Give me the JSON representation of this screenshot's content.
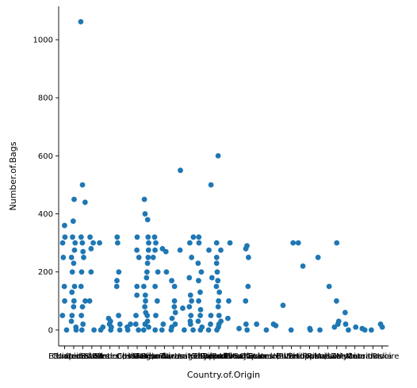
{
  "chart_data": {
    "type": "scatter",
    "style": "categorical-strip",
    "title": "",
    "xlabel": "Country.of.Origin",
    "ylabel": "Number.of.Bags",
    "ylim": [
      -55,
      1115
    ],
    "yticks": [
      0,
      200,
      400,
      600,
      800,
      1000
    ],
    "grid": false,
    "legend": "none",
    "point_color": "#1f77b4",
    "category_count": 36,
    "categories": [
      "Ethiopia",
      "Guatemala",
      "United States",
      "Brazil",
      "Peru",
      "United States (Hawaii)",
      "Indonesia",
      "China",
      "Costa Rica",
      "Mexico",
      "Uganda",
      "Honduras",
      "Taiwan",
      "Nicaragua",
      "Tanzania, United Republic Of",
      "Kenya",
      "Thailand",
      "Colombia",
      "Panama",
      "Papua New Guinea",
      "El Salvador",
      "Japan",
      "Ecuador",
      "United States (Puerto Rico)",
      "Haiti",
      "Burundi",
      "Vietnam",
      "Philippines",
      "Rwanda",
      "Malawi",
      "Laos",
      "Zambia",
      "Myanmar",
      "Mauritius",
      "Cote d?Ivoire",
      "India"
    ],
    "series": [
      {
        "points": [
          [
            0,
            360
          ],
          [
            0,
            320
          ],
          [
            0,
            300
          ],
          [
            0,
            250
          ],
          [
            0,
            150
          ],
          [
            0,
            100
          ],
          [
            0,
            50
          ],
          [
            0,
            0
          ],
          [
            1,
            450
          ],
          [
            1,
            375
          ],
          [
            1,
            320
          ],
          [
            1,
            300
          ],
          [
            1,
            275
          ],
          [
            1,
            250
          ],
          [
            1,
            230
          ],
          [
            1,
            200
          ],
          [
            1,
            150
          ],
          [
            1,
            130
          ],
          [
            1,
            100
          ],
          [
            1,
            80
          ],
          [
            1,
            50
          ],
          [
            1,
            30
          ],
          [
            1,
            10
          ],
          [
            1,
            0
          ],
          [
            2,
            1062
          ],
          [
            2,
            500
          ],
          [
            2,
            440
          ],
          [
            2,
            320
          ],
          [
            2,
            300
          ],
          [
            2,
            270
          ],
          [
            2,
            250
          ],
          [
            2,
            200
          ],
          [
            2,
            150
          ],
          [
            2,
            100
          ],
          [
            2,
            80
          ],
          [
            2,
            50
          ],
          [
            2,
            20
          ],
          [
            2,
            0
          ],
          [
            3,
            320
          ],
          [
            3,
            300
          ],
          [
            3,
            280
          ],
          [
            3,
            200
          ],
          [
            3,
            100
          ],
          [
            3,
            0
          ],
          [
            4,
            300
          ],
          [
            4,
            10
          ],
          [
            4,
            0
          ],
          [
            5,
            40
          ],
          [
            5,
            30
          ],
          [
            5,
            20
          ],
          [
            5,
            10
          ],
          [
            5,
            0
          ],
          [
            6,
            320
          ],
          [
            6,
            300
          ],
          [
            6,
            200
          ],
          [
            6,
            170
          ],
          [
            6,
            150
          ],
          [
            6,
            50
          ],
          [
            6,
            20
          ],
          [
            6,
            0
          ],
          [
            7,
            20
          ],
          [
            7,
            10
          ],
          [
            7,
            0
          ],
          [
            8,
            320
          ],
          [
            8,
            275
          ],
          [
            8,
            250
          ],
          [
            8,
            150
          ],
          [
            8,
            120
          ],
          [
            8,
            50
          ],
          [
            8,
            20
          ],
          [
            8,
            0
          ],
          [
            9,
            450
          ],
          [
            9,
            400
          ],
          [
            9,
            380
          ],
          [
            9,
            320
          ],
          [
            9,
            300
          ],
          [
            9,
            275
          ],
          [
            9,
            250
          ],
          [
            9,
            230
          ],
          [
            9,
            200
          ],
          [
            9,
            180
          ],
          [
            9,
            150
          ],
          [
            9,
            120
          ],
          [
            9,
            100
          ],
          [
            9,
            80
          ],
          [
            9,
            60
          ],
          [
            9,
            50
          ],
          [
            9,
            30
          ],
          [
            9,
            20
          ],
          [
            9,
            10
          ],
          [
            9,
            0
          ],
          [
            10,
            320
          ],
          [
            10,
            300
          ],
          [
            10,
            275
          ],
          [
            10,
            250
          ],
          [
            10,
            200
          ],
          [
            10,
            150
          ],
          [
            10,
            100
          ],
          [
            10,
            50
          ],
          [
            10,
            0
          ],
          [
            11,
            280
          ],
          [
            11,
            270
          ],
          [
            11,
            200
          ],
          [
            11,
            20
          ],
          [
            11,
            0
          ],
          [
            12,
            170
          ],
          [
            12,
            150
          ],
          [
            12,
            100
          ],
          [
            12,
            80
          ],
          [
            12,
            60
          ],
          [
            12,
            40
          ],
          [
            12,
            20
          ],
          [
            12,
            10
          ],
          [
            12,
            0
          ],
          [
            13,
            550
          ],
          [
            13,
            275
          ],
          [
            13,
            75
          ],
          [
            13,
            0
          ],
          [
            14,
            320
          ],
          [
            14,
            300
          ],
          [
            14,
            250
          ],
          [
            14,
            180
          ],
          [
            14,
            120
          ],
          [
            14,
            100
          ],
          [
            14,
            80
          ],
          [
            14,
            50
          ],
          [
            14,
            30
          ],
          [
            14,
            20
          ],
          [
            14,
            0
          ],
          [
            15,
            320
          ],
          [
            15,
            300
          ],
          [
            15,
            230
          ],
          [
            15,
            200
          ],
          [
            15,
            170
          ],
          [
            15,
            130
          ],
          [
            15,
            100
          ],
          [
            15,
            70
          ],
          [
            15,
            50
          ],
          [
            15,
            30
          ],
          [
            15,
            10
          ],
          [
            15,
            0
          ],
          [
            16,
            500
          ],
          [
            16,
            275
          ],
          [
            16,
            180
          ],
          [
            16,
            50
          ],
          [
            16,
            20
          ],
          [
            16,
            0
          ],
          [
            17,
            600
          ],
          [
            17,
            300
          ],
          [
            17,
            275
          ],
          [
            17,
            250
          ],
          [
            17,
            230
          ],
          [
            17,
            200
          ],
          [
            17,
            170
          ],
          [
            17,
            150
          ],
          [
            17,
            130
          ],
          [
            17,
            100
          ],
          [
            17,
            80
          ],
          [
            17,
            50
          ],
          [
            17,
            30
          ],
          [
            17,
            20
          ],
          [
            17,
            10
          ],
          [
            17,
            0
          ],
          [
            18,
            300
          ],
          [
            18,
            100
          ],
          [
            18,
            40
          ],
          [
            19,
            5
          ],
          [
            20,
            290
          ],
          [
            20,
            280
          ],
          [
            20,
            250
          ],
          [
            20,
            150
          ],
          [
            20,
            100
          ],
          [
            20,
            20
          ],
          [
            20,
            0
          ],
          [
            21,
            20
          ],
          [
            22,
            0
          ],
          [
            23,
            20
          ],
          [
            23,
            15
          ],
          [
            24,
            85
          ],
          [
            25,
            300
          ],
          [
            25,
            0
          ],
          [
            26,
            300
          ],
          [
            26,
            220
          ],
          [
            27,
            5
          ],
          [
            27,
            0
          ],
          [
            28,
            250
          ],
          [
            28,
            0
          ],
          [
            29,
            150
          ],
          [
            30,
            300
          ],
          [
            30,
            100
          ],
          [
            30,
            30
          ],
          [
            30,
            20
          ],
          [
            30,
            10
          ],
          [
            31,
            60
          ],
          [
            31,
            20
          ],
          [
            31,
            0
          ],
          [
            32,
            10
          ],
          [
            33,
            5
          ],
          [
            33,
            0
          ],
          [
            34,
            0
          ],
          [
            35,
            20
          ],
          [
            35,
            10
          ]
        ]
      }
    ]
  }
}
